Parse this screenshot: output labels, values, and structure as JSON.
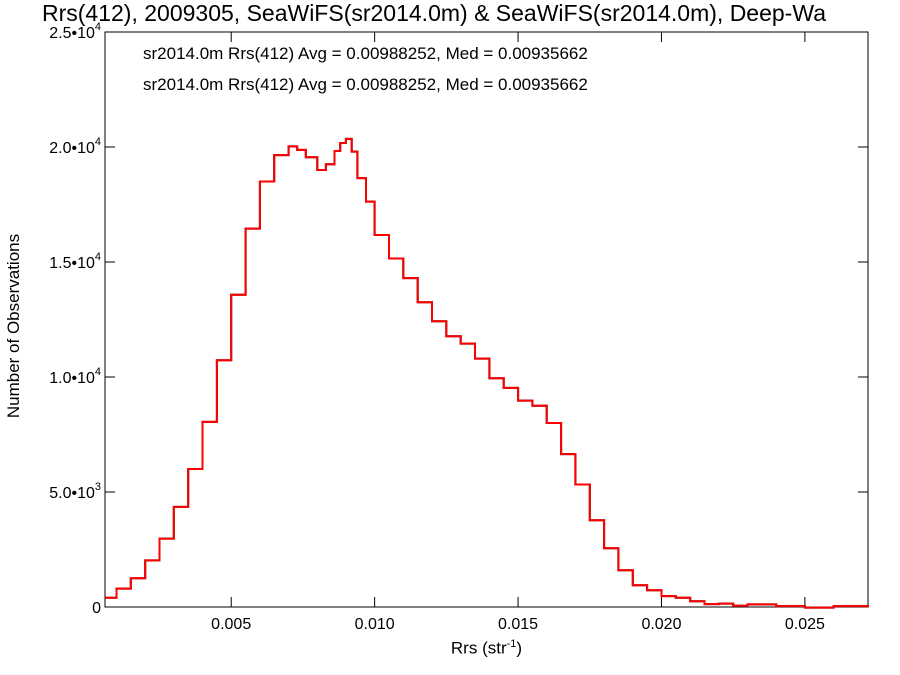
{
  "chart_data": {
    "type": "histogram",
    "title": "Rrs(412), 2009305, SeaWiFS(sr2014.0m) & SeaWiFS(sr2014.0m), Deep-Wa",
    "xlabel": "Rrs (str",
    "xlabel_sup": "-1",
    "xlabel_close": ")",
    "ylabel": "Number of Observations",
    "xlim": [
      0.0006,
      0.0272
    ],
    "ylim": [
      0,
      25000
    ],
    "x_ticks": [
      0.005,
      0.01,
      0.015,
      0.02,
      0.025
    ],
    "x_tick_labels": [
      "0.005",
      "0.010",
      "0.015",
      "0.020",
      "0.025"
    ],
    "y_ticks": [
      0,
      5000,
      10000,
      15000,
      20000,
      25000
    ],
    "y_tick_labels": [
      {
        "base": "0",
        "exp": ""
      },
      {
        "base": "5.0•10",
        "exp": "3"
      },
      {
        "base": "1.0•10",
        "exp": "4"
      },
      {
        "base": "1.5•10",
        "exp": "4"
      },
      {
        "base": "2.0•10",
        "exp": "4"
      },
      {
        "base": "2.5•10",
        "exp": "4"
      }
    ],
    "grid": false,
    "legend_position": "top-left",
    "series": [
      {
        "name": "sr2014.0m Rrs(412) Avg = 0.00988252, Med = 0.00935662",
        "color": "#000000",
        "x": [
          0.0006,
          0.001,
          0.0015,
          0.002,
          0.0025,
          0.003,
          0.0035,
          0.004,
          0.0045,
          0.005,
          0.0055,
          0.006,
          0.0065,
          0.007,
          0.0073,
          0.0076,
          0.008,
          0.0083,
          0.0086,
          0.0088,
          0.009,
          0.0092,
          0.0094,
          0.0097,
          0.01,
          0.0105,
          0.011,
          0.0115,
          0.012,
          0.0125,
          0.013,
          0.0135,
          0.014,
          0.0145,
          0.015,
          0.0155,
          0.016,
          0.0165,
          0.017,
          0.0175,
          0.018,
          0.0185,
          0.019,
          0.0195,
          0.02,
          0.0205,
          0.021,
          0.0215,
          0.022,
          0.0225,
          0.023,
          0.024,
          0.025,
          0.026,
          0.0272
        ],
        "y": [
          400,
          800,
          1300,
          2000,
          3000,
          4300,
          6000,
          8100,
          10700,
          13600,
          16400,
          18500,
          19700,
          20000,
          19900,
          19500,
          19000,
          19300,
          19800,
          20200,
          20300,
          19800,
          18700,
          17600,
          16200,
          15100,
          14300,
          13300,
          12400,
          11800,
          11400,
          10800,
          10000,
          9500,
          9000,
          8700,
          8000,
          6700,
          5300,
          3800,
          2500,
          1600,
          1000,
          700,
          500,
          350,
          250,
          180,
          120,
          80,
          60,
          40,
          25,
          15,
          10
        ]
      },
      {
        "name": "sr2014.0m Rrs(412) Avg = 0.00988252, Med = 0.00935662",
        "color": "#ff0000",
        "x": [
          0.0006,
          0.001,
          0.0015,
          0.002,
          0.0025,
          0.003,
          0.0035,
          0.004,
          0.0045,
          0.005,
          0.0055,
          0.006,
          0.0065,
          0.007,
          0.0073,
          0.0076,
          0.008,
          0.0083,
          0.0086,
          0.0088,
          0.009,
          0.0092,
          0.0094,
          0.0097,
          0.01,
          0.0105,
          0.011,
          0.0115,
          0.012,
          0.0125,
          0.013,
          0.0135,
          0.014,
          0.0145,
          0.015,
          0.0155,
          0.016,
          0.0165,
          0.017,
          0.0175,
          0.018,
          0.0185,
          0.019,
          0.0195,
          0.02,
          0.0205,
          0.021,
          0.0215,
          0.022,
          0.0225,
          0.023,
          0.024,
          0.025,
          0.026,
          0.0272
        ],
        "y": [
          400,
          800,
          1300,
          2000,
          3000,
          4300,
          6000,
          8100,
          10700,
          13600,
          16400,
          18500,
          19700,
          20000,
          19900,
          19500,
          19000,
          19300,
          19800,
          20200,
          20300,
          19800,
          18700,
          17600,
          16200,
          15100,
          14300,
          13300,
          12400,
          11800,
          11400,
          10800,
          10000,
          9500,
          9000,
          8700,
          8000,
          6700,
          5300,
          3800,
          2500,
          1600,
          1000,
          700,
          500,
          350,
          250,
          180,
          120,
          80,
          60,
          40,
          25,
          15,
          10
        ]
      }
    ]
  }
}
